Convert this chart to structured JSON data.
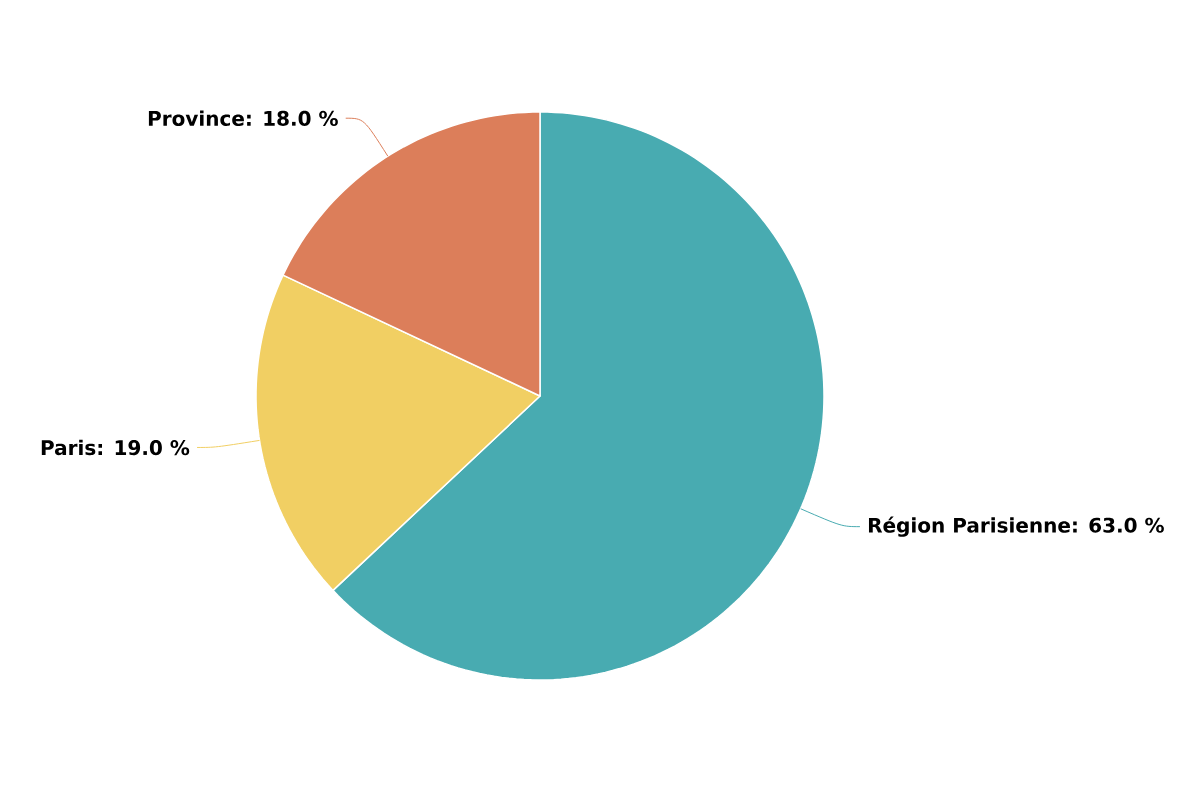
{
  "chart_data": {
    "type": "pie",
    "categories": [
      "Région Parisienne: 63.0 %",
      "Paris: 19.0 %",
      "Province: 18.0 %"
    ],
    "values": [
      63.0,
      19.0,
      18.0
    ],
    "colors": [
      "#48abb1",
      "#f1cf63",
      "#dc7e5a"
    ]
  }
}
